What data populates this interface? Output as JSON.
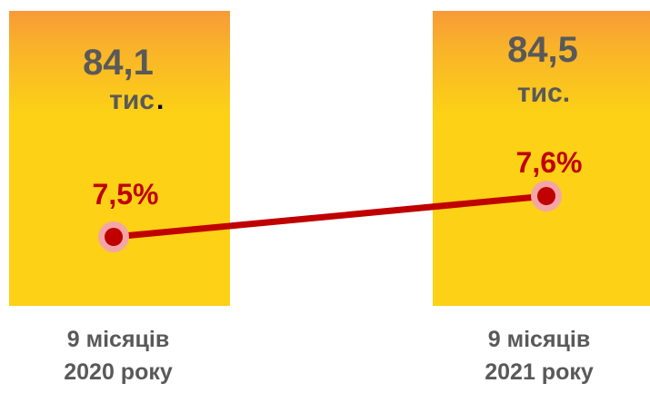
{
  "chart_data": {
    "type": "bar",
    "categories": [
      "9 місяців 2020 року",
      "9 місяців 2021 року"
    ],
    "category_lines": [
      [
        "9 місяців",
        "2020 року"
      ],
      [
        "9 місяців",
        "2021 року"
      ]
    ],
    "series": [
      {
        "type": "bar",
        "values": [
          84.1,
          84.5
        ],
        "labels": [
          "84,1",
          "84,5"
        ],
        "unit_labels": [
          "тис",
          "тис."
        ],
        "color_top": "#f79a38",
        "color_bottom": "#fcd116"
      },
      {
        "type": "line",
        "values": [
          7.5,
          7.6
        ],
        "labels": [
          "7,5%",
          "7,6%"
        ],
        "color": "#c00000",
        "marker_color": "#c00000",
        "marker_ring": "#f4a6a6"
      }
    ],
    "accent_dot": "."
  }
}
